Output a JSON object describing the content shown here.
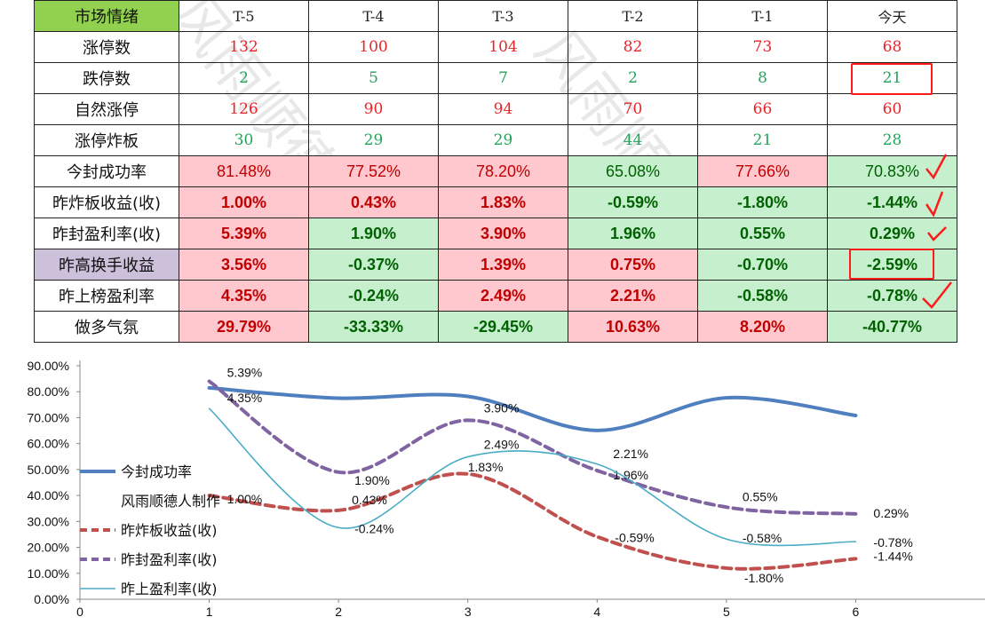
{
  "table": {
    "header": [
      "市场情绪",
      "T-5",
      "T-4",
      "T-3",
      "T-2",
      "T-1",
      "今天"
    ],
    "rows": [
      {
        "label": "涨停数",
        "values": [
          "132",
          "100",
          "104",
          "82",
          "73",
          "68"
        ]
      },
      {
        "label": "跌停数",
        "values": [
          "2",
          "5",
          "7",
          "2",
          "8",
          "21"
        ]
      },
      {
        "label": "自然涨停",
        "values": [
          "126",
          "90",
          "94",
          "70",
          "66",
          "60"
        ]
      },
      {
        "label": "涨停炸板",
        "values": [
          "30",
          "29",
          "29",
          "44",
          "21",
          "28"
        ]
      },
      {
        "label": "今封成功率",
        "values": [
          "81.48%",
          "77.52%",
          "78.20%",
          "65.08%",
          "77.66%",
          "70.83%"
        ]
      },
      {
        "label": "昨炸板收益(收)",
        "values": [
          "1.00%",
          "0.43%",
          "1.83%",
          "-0.59%",
          "-1.80%",
          "-1.44%"
        ]
      },
      {
        "label": "昨封盈利率(收)",
        "values": [
          "5.39%",
          "1.90%",
          "3.90%",
          "1.96%",
          "0.55%",
          "0.29%"
        ]
      },
      {
        "label": "昨高换手收益",
        "values": [
          "3.56%",
          "-0.37%",
          "1.39%",
          "0.75%",
          "-0.70%",
          "-2.59%"
        ]
      },
      {
        "label": "昨上榜盈利率",
        "values": [
          "4.35%",
          "-0.24%",
          "2.49%",
          "2.21%",
          "-0.58%",
          "-0.78%"
        ]
      },
      {
        "label": "做多气氛",
        "values": [
          "29.79%",
          "-33.33%",
          "-29.45%",
          "10.63%",
          "8.20%",
          "-40.77%"
        ]
      }
    ]
  },
  "colors": {
    "red_text": "#e8242a",
    "green_text": "#22a55a",
    "pink_fill": "#ffc7ce",
    "green_fill": "#c6efce",
    "header_fill": "#92d050",
    "purple_fill": "#ccc0da",
    "annotation": "#ff1a1a"
  },
  "watermark": "风雨顺德人",
  "chart_data": {
    "type": "line",
    "x": [
      1,
      2,
      3,
      4,
      5,
      6
    ],
    "xlim": [
      0,
      7
    ],
    "ylim": [
      0,
      90
    ],
    "x_ticks": [
      "0",
      "1",
      "2",
      "3",
      "4",
      "5",
      "6"
    ],
    "y_ticks": [
      "0.00%",
      "10.00%",
      "20.00%",
      "30.00%",
      "40.00%",
      "50.00%",
      "60.00%",
      "70.00%",
      "80.00%",
      "90.00%"
    ],
    "legend_position": "left",
    "legend_note": "风雨顺德人制作",
    "series": [
      {
        "name": "今封成功率",
        "values": [
          81.48,
          77.52,
          78.2,
          65.08,
          77.66,
          70.83
        ],
        "color": "#4f7fbf",
        "style": "solid-thick",
        "labels": []
      },
      {
        "name": "昨炸板收益(收)",
        "values": [
          40,
          34.3,
          48.3,
          24.1,
          12,
          15.6
        ],
        "color": "#c0504d",
        "style": "dashed",
        "labels": [
          "1.00%",
          "0.43%",
          "1.83%",
          "-0.59%",
          "-1.80%",
          "-1.44%"
        ]
      },
      {
        "name": "昨封盈利率(收)",
        "values": [
          84,
          49,
          69,
          49.6,
          35.5,
          32.9
        ],
        "color": "#8064a2",
        "style": "dashed",
        "labels": [
          "5.39%",
          "1.90%",
          "3.90%",
          "1.96%",
          "0.55%",
          "0.29%"
        ]
      },
      {
        "name": "昨上盈利率(收)",
        "values": [
          73.5,
          27.6,
          54.9,
          52.1,
          23.2,
          22.2
        ],
        "color": "#4bacc6",
        "style": "solid-thin",
        "labels": [
          "4.35%",
          "-0.24%",
          "2.49%",
          "2.21%",
          "-0.58%",
          "-0.78%"
        ]
      }
    ]
  }
}
